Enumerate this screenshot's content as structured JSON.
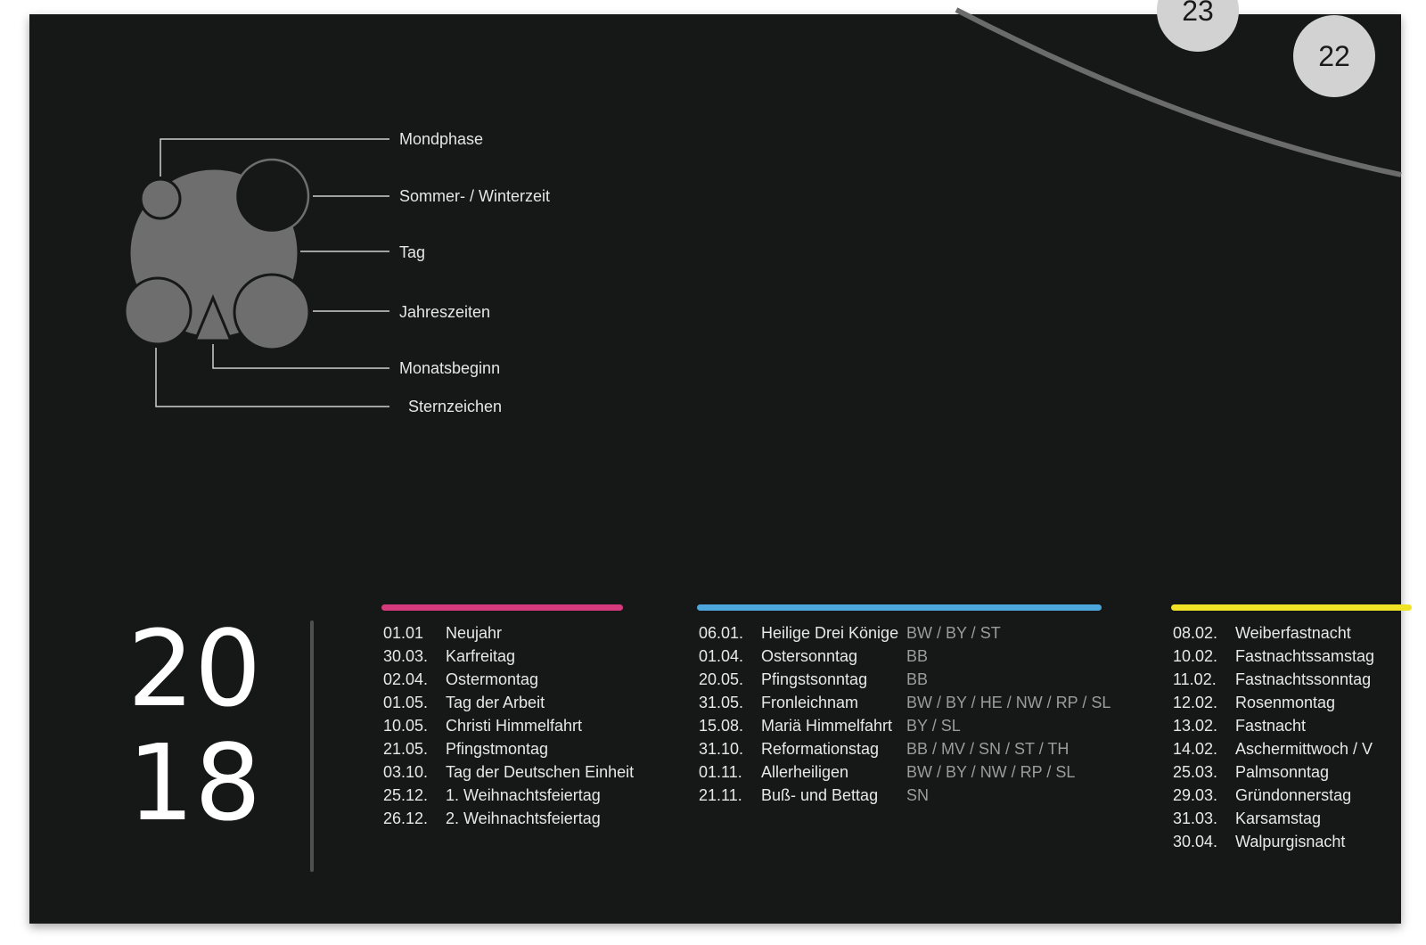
{
  "page": {
    "badges": {
      "partial": "23",
      "day": "22"
    },
    "legend": {
      "moon_phase": "Mondphase",
      "summer_winter_time": "Sommer- / Winterzeit",
      "day": "Tag",
      "seasons": "Jahreszeiten",
      "month_start": "Monatsbeginn",
      "zodiac": "Sternzeichen"
    },
    "year": {
      "line1": "20",
      "line2": "18"
    }
  },
  "colors": {
    "background": "#161717",
    "national_bar": "#d63a7c",
    "regional_bar": "#4ea7dc",
    "other_bar": "#f0e325"
  },
  "holidays_national": [
    {
      "date": "01.01",
      "name": "Neujahr"
    },
    {
      "date": "30.03.",
      "name": "Karfreitag"
    },
    {
      "date": "02.04.",
      "name": "Ostermontag"
    },
    {
      "date": "01.05.",
      "name": "Tag der Arbeit"
    },
    {
      "date": "10.05.",
      "name": "Christi Himmelfahrt"
    },
    {
      "date": "21.05.",
      "name": "Pfingstmontag"
    },
    {
      "date": "03.10.",
      "name": "Tag der Deutschen Einheit"
    },
    {
      "date": "25.12.",
      "name": "1. Weihnachtsfeiertag"
    },
    {
      "date": "26.12.",
      "name": "2. Weihnachtsfeiertag"
    }
  ],
  "holidays_regional": [
    {
      "date": "06.01.",
      "name": "Heilige Drei Könige",
      "region": "BW / BY / ST"
    },
    {
      "date": "01.04.",
      "name": "Ostersonntag",
      "region": "BB"
    },
    {
      "date": "20.05.",
      "name": "Pfingstsonntag",
      "region": "BB"
    },
    {
      "date": "31.05.",
      "name": "Fronleichnam",
      "region": "BW / BY / HE / NW / RP / SL"
    },
    {
      "date": "15.08.",
      "name": "Mariä Himmelfahrt",
      "region": "BY / SL"
    },
    {
      "date": "31.10.",
      "name": "Reformationstag",
      "region": "BB / MV / SN / ST / TH"
    },
    {
      "date": "01.11.",
      "name": "Allerheiligen",
      "region": "BW / BY / NW / RP / SL"
    },
    {
      "date": "21.11.",
      "name": "Buß- und Bettag",
      "region": "SN"
    }
  ],
  "observances": [
    {
      "date": "08.02.",
      "name": "Weiberfastnacht"
    },
    {
      "date": "10.02.",
      "name": "Fastnachtssamstag"
    },
    {
      "date": "11.02.",
      "name": "Fastnachtssonntag"
    },
    {
      "date": "12.02.",
      "name": "Rosenmontag"
    },
    {
      "date": "13.02.",
      "name": "Fastnacht"
    },
    {
      "date": "14.02.",
      "name": "Aschermittwoch / V"
    },
    {
      "date": "25.03.",
      "name": "Palmsonntag"
    },
    {
      "date": "29.03.",
      "name": "Gründonnerstag"
    },
    {
      "date": "31.03.",
      "name": "Karsamstag"
    },
    {
      "date": "30.04.",
      "name": "Walpurgisnacht"
    }
  ]
}
